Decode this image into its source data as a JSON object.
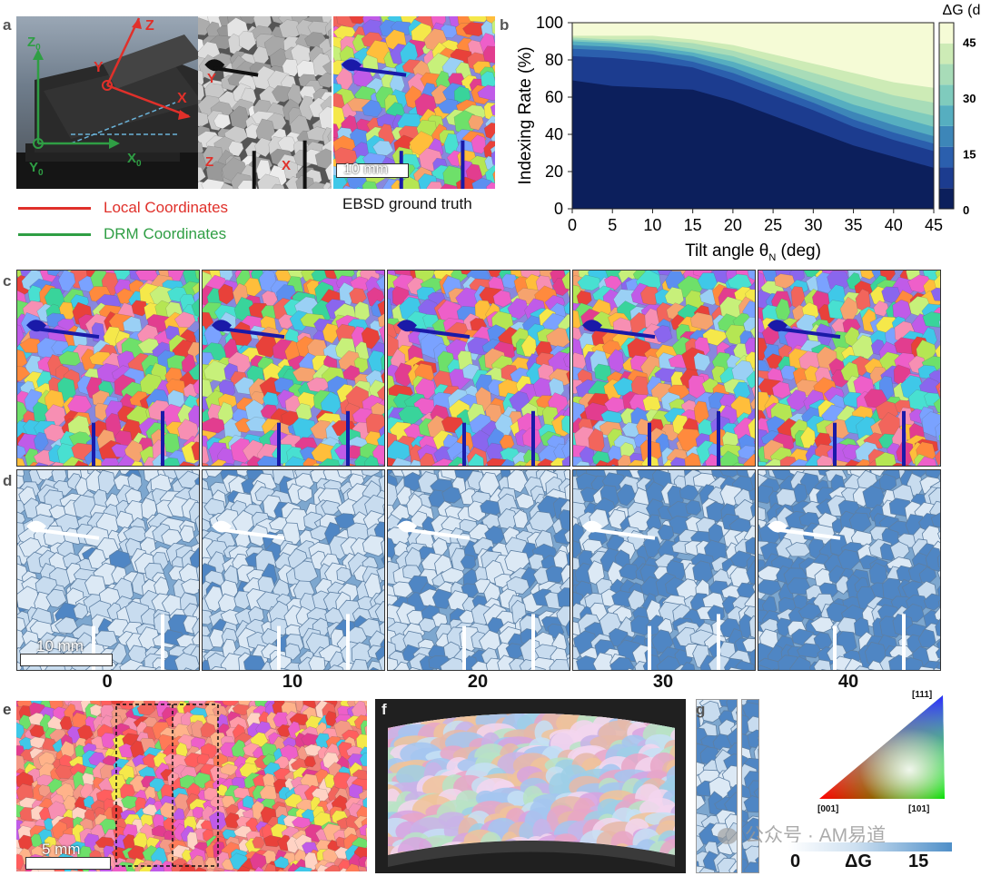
{
  "panel_labels": {
    "a": "a",
    "b": "b",
    "c": "c",
    "d": "d",
    "e": "e",
    "f": "f",
    "g": "g"
  },
  "panel_a": {
    "axes_local": {
      "z": "Z",
      "y": "Y",
      "x": "X"
    },
    "axes_drm": {
      "z0": "Z",
      "z0_sub": "0",
      "x0": "X",
      "x0_sub": "0",
      "y0": "Y",
      "y0_sub": "0"
    },
    "map_axes": {
      "y": "Y",
      "z": "Z",
      "x": "X"
    },
    "scale_bar_label": "10 mm",
    "ebsd_caption": "EBSD ground truth",
    "legend_local": "Local Coordinates",
    "legend_drm": "DRM Coordinates",
    "colors": {
      "local": "#e0302a",
      "drm": "#2f9e44"
    }
  },
  "chart_data": {
    "type": "area",
    "title": "",
    "xlabel": "Tilt angle θ",
    "xlabel_sub": "N",
    "xlabel_unit": " (deg)",
    "ylabel": "Indexing Rate (%)",
    "xlim": [
      0,
      45
    ],
    "ylim": [
      0,
      100
    ],
    "xticks": [
      0,
      5,
      10,
      15,
      20,
      25,
      30,
      35,
      40,
      45
    ],
    "yticks": [
      0,
      20,
      40,
      60,
      80,
      100
    ],
    "x": [
      0,
      5,
      10,
      15,
      20,
      25,
      30,
      35,
      40,
      45
    ],
    "colorbar": {
      "title": "ΔG (deg)",
      "ticks": [
        "45",
        "30",
        "15",
        "0"
      ]
    },
    "series": [
      {
        "name": "ΔG 0-5",
        "values": [
          69,
          66,
          65,
          64,
          58,
          50,
          42,
          34,
          28,
          22
        ],
        "color": "#0c1f5c"
      },
      {
        "name": "ΔG 5-10",
        "values": [
          82,
          81,
          79,
          76,
          69,
          61,
          53,
          44,
          37,
          31
        ],
        "color": "#1c3c8f"
      },
      {
        "name": "ΔG 10-15",
        "values": [
          86,
          85,
          83,
          79,
          73,
          65,
          57,
          48,
          41,
          35
        ],
        "color": "#2b5fad"
      },
      {
        "name": "ΔG 15-20",
        "values": [
          88,
          87,
          85,
          82,
          76,
          68,
          60,
          52,
          45,
          39
        ],
        "color": "#3d86b8"
      },
      {
        "name": "ΔG 20-25",
        "values": [
          90,
          89,
          87,
          84,
          79,
          72,
          64,
          56,
          50,
          44
        ],
        "color": "#56aec0"
      },
      {
        "name": "ΔG 25-30",
        "values": [
          91,
          90,
          89,
          86,
          82,
          75,
          68,
          61,
          55,
          50
        ],
        "color": "#7fcbbd"
      },
      {
        "name": "ΔG 30-35",
        "values": [
          92,
          91,
          91,
          89,
          85,
          79,
          73,
          67,
          61,
          57
        ],
        "color": "#a8dcb8"
      },
      {
        "name": "ΔG 35-40",
        "values": [
          93,
          93,
          93,
          91,
          88,
          83,
          78,
          73,
          68,
          65
        ],
        "color": "#cdebb6"
      },
      {
        "name": "ΔG 40-45",
        "values": [
          100,
          100,
          100,
          100,
          100,
          100,
          100,
          100,
          100,
          100
        ],
        "color": "#f5fbd6"
      }
    ]
  },
  "panel_d": {
    "scale_bar_label": "10 mm"
  },
  "tilt_columns": [
    "0",
    "10",
    "20",
    "30",
    "40"
  ],
  "panel_e": {
    "scale_bar_label": "5 mm"
  },
  "ipf_triangle": {
    "top": "[111]",
    "left": "[001]",
    "right": "[101]"
  },
  "dg_colorbar": {
    "min": "0",
    "label": "ΔG",
    "max": "15"
  },
  "watermark": "公众号 · AM易道"
}
